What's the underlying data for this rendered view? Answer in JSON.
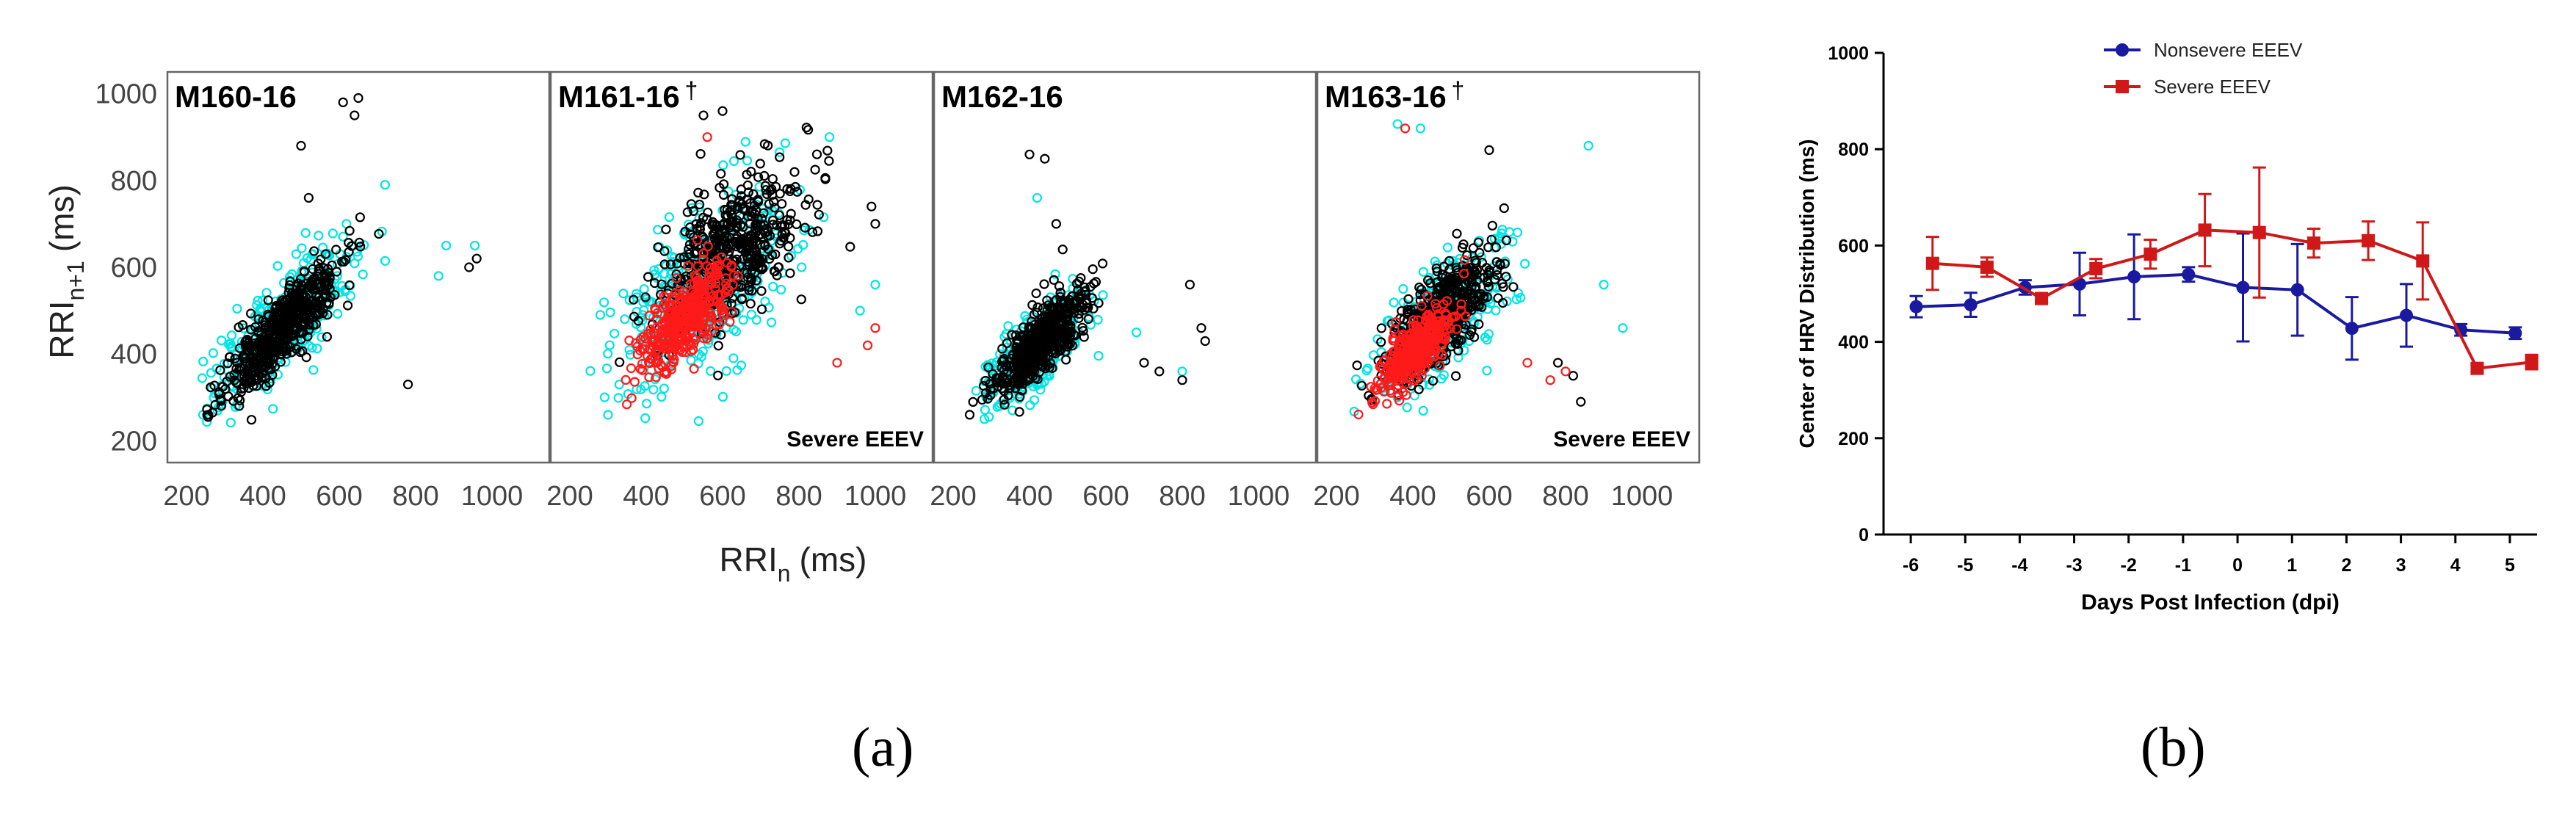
{
  "colors": {
    "cyan": "#00e5e5",
    "black": "#000000",
    "red": "#ff1a1a",
    "navy": "#1a1aa0",
    "severe_red": "#d01818",
    "frame": "#666666"
  },
  "panel_a": {
    "ylabel_main": "RRI",
    "ylabel_sub": "n+1",
    "ylabel_unit": "(ms)",
    "xlabel_main": "RRI",
    "xlabel_sub": "n",
    "xlabel_unit": "(ms)",
    "caption": "(a)"
  },
  "panel_b": {
    "caption": "(b)"
  },
  "chart_data": [
    {
      "type": "scatter",
      "title": "M160-16",
      "dagger": "",
      "note": "",
      "xlabel": "RRIn (ms)",
      "ylabel": "RRIn+1 (ms)",
      "xlim": [
        150,
        1150
      ],
      "ylim": [
        150,
        1050
      ],
      "xticks": [
        "200",
        "400",
        "600",
        "800",
        "1000"
      ],
      "yticks": [
        "200",
        "400",
        "600",
        "800",
        "1000"
      ],
      "series": [
        {
          "name": "cyan",
          "color": "#00e5e5",
          "center": [
            460,
            470
          ],
          "major_sd": 170,
          "minor_sd": 55,
          "outliers": [
            [
              720,
              790
            ],
            [
              880,
              650
            ],
            [
              955,
              650
            ],
            [
              860,
              580
            ]
          ]
        },
        {
          "name": "black",
          "color": "#000000",
          "center": [
            450,
            460
          ],
          "major_sd": 150,
          "minor_sd": 42,
          "outliers": [
            [
              610,
              980
            ],
            [
              650,
              990
            ],
            [
              640,
              950
            ],
            [
              960,
              620
            ],
            [
              940,
              600
            ],
            [
              500,
              880
            ],
            [
              780,
              330
            ],
            [
              520,
              760
            ]
          ]
        }
      ]
    },
    {
      "type": "scatter",
      "title": "M161-16",
      "dagger": "†",
      "note": "Severe EEEV",
      "xlabel": "RRIn (ms)",
      "ylabel": "RRIn+1 (ms)",
      "xlim": [
        150,
        1150
      ],
      "ylim": [
        150,
        1050
      ],
      "xticks": [
        "200",
        "400",
        "600",
        "800",
        "1000"
      ],
      "yticks": [
        "200",
        "400",
        "600",
        "800",
        "1000"
      ],
      "series": [
        {
          "name": "cyan",
          "color": "#00e5e5",
          "center": [
            560,
            560
          ],
          "major_sd": 210,
          "minor_sd": 110,
          "outliers": [
            [
              1000,
              560
            ],
            [
              960,
              500
            ],
            [
              300,
              260
            ],
            [
              880,
              900
            ]
          ]
        },
        {
          "name": "black",
          "color": "#000000",
          "center": [
            620,
            630
          ],
          "major_sd": 170,
          "minor_sd": 85,
          "outliers": [
            [
              1000,
              700
            ],
            [
              990,
              740
            ],
            [
              550,
              950
            ],
            [
              600,
              960
            ]
          ]
        },
        {
          "name": "red",
          "color": "#ff1a1a",
          "center": [
            500,
            480
          ],
          "major_sd": 110,
          "minor_sd": 48,
          "outliers": [
            [
              1000,
              460
            ],
            [
              980,
              420
            ],
            [
              900,
              380
            ],
            [
              560,
              900
            ]
          ]
        }
      ]
    },
    {
      "type": "scatter",
      "title": "M162-16",
      "dagger": "",
      "note": "",
      "xlabel": "RRIn (ms)",
      "ylabel": "RRIn+1 (ms)",
      "xlim": [
        150,
        1150
      ],
      "ylim": [
        150,
        1050
      ],
      "xticks": [
        "200",
        "400",
        "600",
        "800",
        "1000"
      ],
      "yticks": [
        "200",
        "400",
        "600",
        "800",
        "1000"
      ],
      "series": [
        {
          "name": "cyan",
          "color": "#00e5e5",
          "center": [
            420,
            410
          ],
          "major_sd": 120,
          "minor_sd": 50,
          "outliers": [
            [
              800,
              360
            ],
            [
              680,
              450
            ],
            [
              420,
              760
            ]
          ]
        },
        {
          "name": "black",
          "color": "#000000",
          "center": [
            430,
            430
          ],
          "major_sd": 115,
          "minor_sd": 38,
          "outliers": [
            [
              400,
              860
            ],
            [
              440,
              850
            ],
            [
              820,
              560
            ],
            [
              850,
              460
            ],
            [
              860,
              430
            ],
            [
              800,
              340
            ],
            [
              700,
              380
            ],
            [
              740,
              360
            ],
            [
              470,
              700
            ]
          ]
        }
      ]
    },
    {
      "type": "scatter",
      "title": "M163-16",
      "dagger": "†",
      "note": "Severe EEEV",
      "xlabel": "RRIn (ms)",
      "ylabel": "RRIn+1 (ms)",
      "xlim": [
        150,
        1150
      ],
      "ylim": [
        150,
        1050
      ],
      "xticks": [
        "200",
        "400",
        "600",
        "800",
        "1000"
      ],
      "yticks": [
        "200",
        "400",
        "600",
        "800",
        "1000"
      ],
      "series": [
        {
          "name": "cyan",
          "color": "#00e5e5",
          "center": [
            470,
            470
          ],
          "major_sd": 150,
          "minor_sd": 70,
          "outliers": [
            [
              900,
              560
            ],
            [
              950,
              460
            ],
            [
              860,
              880
            ],
            [
              360,
              930
            ],
            [
              420,
              920
            ]
          ]
        },
        {
          "name": "black",
          "color": "#000000",
          "center": [
            470,
            480
          ],
          "major_sd": 135,
          "minor_sd": 55,
          "outliers": [
            [
              600,
              870
            ],
            [
              820,
              350
            ],
            [
              840,
              290
            ],
            [
              780,
              380
            ]
          ]
        },
        {
          "name": "red",
          "color": "#ff1a1a",
          "center": [
            410,
            410
          ],
          "major_sd": 90,
          "minor_sd": 35,
          "outliers": [
            [
              380,
              920
            ],
            [
              700,
              380
            ],
            [
              760,
              340
            ],
            [
              800,
              360
            ]
          ]
        }
      ]
    },
    {
      "type": "line",
      "title": "",
      "xlabel": "Days Post Infection (dpi)",
      "ylabel": "Center of  HRV Distribution  (ms)",
      "xlim": [
        -6.5,
        5.5
      ],
      "ylim": [
        0,
        1000
      ],
      "xticks": [
        "-6",
        "-5",
        "-4",
        "-3",
        "-2",
        "-1",
        "0",
        "1",
        "2",
        "3",
        "4",
        "5"
      ],
      "yticks": [
        "0",
        "200",
        "400",
        "600",
        "800",
        "1000"
      ],
      "legend_position": "top-right",
      "series": [
        {
          "name": "Nonsevere EEEV",
          "color": "#1a1aa0",
          "marker": "circle",
          "x": [
            -5.9,
            -4.9,
            -3.9,
            -2.9,
            -1.9,
            -0.9,
            0.1,
            1.1,
            2.1,
            3.1,
            4.1,
            5.1
          ],
          "y": [
            473,
            477,
            513,
            520,
            535,
            540,
            513,
            508,
            428,
            455,
            425,
            418
          ],
          "err": [
            22,
            25,
            15,
            65,
            88,
            15,
            112,
            95,
            65,
            65,
            12,
            12
          ]
        },
        {
          "name": "Severe EEEV",
          "color": "#d01818",
          "marker": "square",
          "x": [
            -5.6,
            -4.6,
            -3.6,
            -2.6,
            -1.6,
            -0.6,
            0.4,
            1.4,
            2.4,
            3.4,
            4.4,
            5.4
          ],
          "y": [
            563,
            555,
            490,
            552,
            582,
            632,
            627,
            605,
            610,
            568,
            345,
            358
          ],
          "err": [
            55,
            20,
            8,
            20,
            30,
            75,
            135,
            30,
            40,
            80,
            8,
            15
          ]
        }
      ]
    }
  ]
}
